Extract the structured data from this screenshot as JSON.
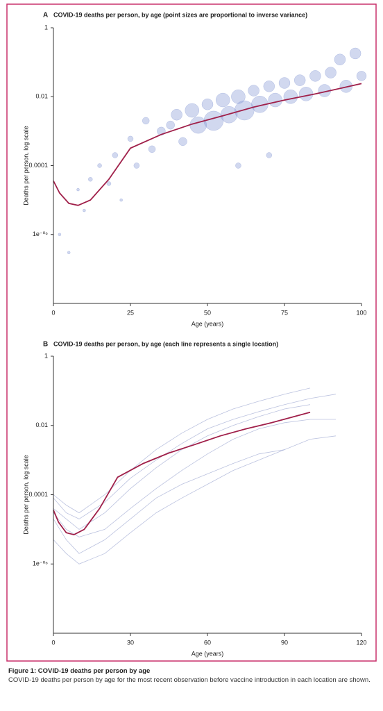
{
  "chart_data": [
    {
      "type": "scatter",
      "panel_label": "A",
      "title": "COVID-19 deaths per person, by age (point sizes are proportional to inverse variance)",
      "xlabel": "Age (years)",
      "ylabel": "Deaths per person, log scale",
      "log_scale": true,
      "xlim": [
        0,
        100
      ],
      "xticks": [
        0,
        25,
        50,
        75,
        100
      ],
      "ylim": [
        1e-08,
        1
      ],
      "yticks": [
        1,
        0.01,
        0.0001,
        {
          "value": 1e-06,
          "label": "1e⁻⁰⁶"
        }
      ],
      "point_color": "#7b8fd0",
      "x": [
        2,
        5,
        8,
        10,
        12,
        15,
        18,
        20,
        22,
        25,
        27,
        30,
        32,
        35,
        38,
        40,
        42,
        45,
        47,
        50,
        52,
        55,
        57,
        60,
        62,
        65,
        67,
        70,
        72,
        75,
        77,
        80,
        82,
        85,
        88,
        90,
        93,
        95,
        98,
        100,
        60,
        70
      ],
      "values": [
        1e-06,
        3e-07,
        2e-05,
        5e-06,
        4e-05,
        0.0001,
        3e-05,
        0.0002,
        1e-05,
        0.0006,
        0.0001,
        0.002,
        0.0003,
        0.001,
        0.0015,
        0.003,
        0.0005,
        0.004,
        0.0015,
        0.006,
        0.002,
        0.008,
        0.003,
        0.01,
        0.004,
        0.015,
        0.006,
        0.02,
        0.008,
        0.025,
        0.01,
        0.03,
        0.012,
        0.04,
        0.015,
        0.05,
        0.12,
        0.02,
        0.18,
        0.04,
        0.0001,
        0.0002
      ],
      "sizes": [
        2,
        2,
        2,
        2,
        3,
        3,
        3,
        4,
        2,
        4,
        4,
        5,
        5,
        6,
        6,
        8,
        6,
        10,
        12,
        8,
        14,
        10,
        12,
        10,
        14,
        8,
        12,
        8,
        10,
        8,
        10,
        8,
        10,
        8,
        9,
        8,
        8,
        9,
        8,
        7,
        4,
        4
      ],
      "fit": {
        "color": "#a0204a",
        "x": [
          0,
          2,
          5,
          8,
          12,
          18,
          25,
          35,
          45,
          55,
          65,
          75,
          85,
          95,
          100
        ],
        "values": [
          3.6e-05,
          1.6e-05,
          8e-06,
          7e-06,
          1e-05,
          4e-05,
          0.00032,
          0.0008,
          0.0016,
          0.0028,
          0.005,
          0.008,
          0.012,
          0.019,
          0.024
        ]
      }
    },
    {
      "type": "line",
      "panel_label": "B",
      "title": "COVID-19 deaths per person, by age (each line represents a single location)",
      "xlabel": "Age (years)",
      "ylabel": "Deaths per person, log scale",
      "log_scale": true,
      "xlim": [
        0,
        120
      ],
      "xticks": [
        0,
        30,
        60,
        90,
        120
      ],
      "ylim": [
        1e-08,
        1
      ],
      "yticks": [
        1,
        0.01,
        0.0001,
        {
          "value": 1e-06,
          "label": "1e⁻⁰⁶"
        }
      ],
      "x": [
        0,
        5,
        10,
        20,
        30,
        40,
        50,
        60,
        70,
        80,
        90,
        100,
        110
      ],
      "series": [
        {
          "color": "#8d9ac9",
          "values": [
            8e-05,
            3e-05,
            2e-05,
            6e-05,
            0.0003,
            0.001,
            0.003,
            0.008,
            0.015,
            0.025,
            0.04,
            0.06,
            0.08
          ]
        },
        {
          "color": "#8d9ac9",
          "values": [
            3e-05,
            1e-05,
            6e-06,
            1e-05,
            4e-05,
            0.00015,
            0.0005,
            0.0015,
            0.004,
            0.008,
            0.012,
            0.015,
            0.015
          ]
        },
        {
          "color": "#8d9ac9",
          "values": [
            2e-05,
            5e-06,
            2e-06,
            5e-06,
            2e-05,
            8e-05,
            0.0002,
            0.0004,
            0.0008,
            0.0015,
            0.002,
            null,
            null
          ]
        },
        {
          "color": "#8d9ac9",
          "values": [
            0.0001,
            5e-05,
            3e-05,
            0.0001,
            0.0005,
            0.002,
            0.006,
            0.015,
            0.03,
            0.05,
            0.08,
            0.12,
            null
          ]
        },
        {
          "color": "#8d9ac9",
          "values": [
            5e-06,
            2e-06,
            1e-06,
            2e-06,
            8e-06,
            3e-05,
            8e-05,
            0.0002,
            0.0005,
            0.001,
            0.002,
            0.004,
            0.005
          ]
        },
        {
          "color": "#8d9ac9",
          "values": [
            4e-05,
            2e-05,
            1e-05,
            3e-05,
            0.00015,
            0.0006,
            0.002,
            0.005,
            0.01,
            0.018,
            0.03,
            0.04,
            null
          ]
        }
      ],
      "fit": {
        "color": "#a0204a",
        "x": [
          0,
          2,
          5,
          8,
          12,
          18,
          25,
          35,
          45,
          55,
          65,
          75,
          85,
          95,
          100
        ],
        "values": [
          3.6e-05,
          1.6e-05,
          8e-06,
          7e-06,
          1e-05,
          4e-05,
          0.00032,
          0.0008,
          0.0016,
          0.0028,
          0.005,
          0.008,
          0.012,
          0.019,
          0.024
        ]
      }
    }
  ],
  "caption": {
    "title": "Figure 1: COVID-19 deaths per person by age",
    "text": "COVID-19 deaths per person by age for the most recent observation before vaccine introduction in each location are shown."
  }
}
